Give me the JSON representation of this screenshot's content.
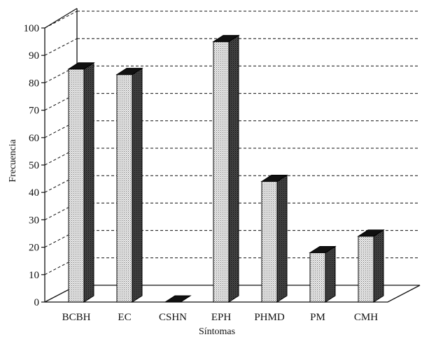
{
  "chart_data": {
    "type": "bar",
    "style": "3d",
    "xlabel": "Síntomas",
    "ylabel": "Frecuencia",
    "categories": [
      "BCBH",
      "EC",
      "CSHN",
      "EPH",
      "PHMD",
      "PM",
      "CMH"
    ],
    "values": [
      85,
      83,
      0,
      95,
      44,
      18,
      24
    ],
    "ylim": [
      0,
      100
    ],
    "yticks": [
      0,
      10,
      20,
      30,
      40,
      50,
      60,
      70,
      80,
      90,
      100
    ],
    "grid": true,
    "legend": "none"
  }
}
